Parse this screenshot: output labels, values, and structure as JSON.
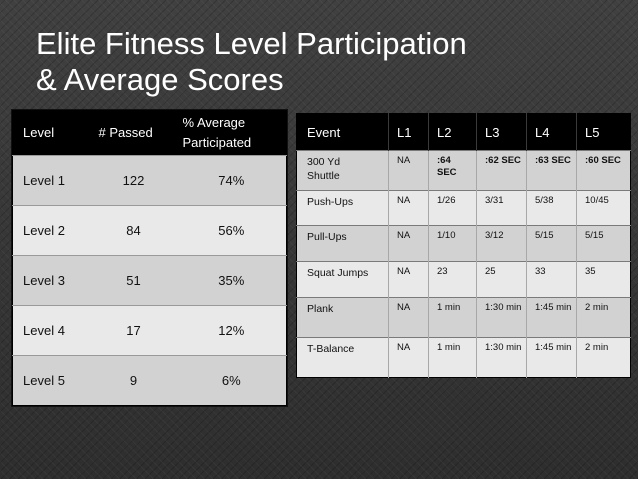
{
  "slide": {
    "title_line1": "Elite Fitness Level Participation",
    "title_line2": "& Average Scores"
  },
  "participation_table": {
    "headers": {
      "level": "Level",
      "passed": "# Passed",
      "pct_line1": "% Average",
      "pct_line2": "Participated"
    },
    "rows": [
      {
        "level": "Level 1",
        "passed": "122",
        "pct": "74%"
      },
      {
        "level": "Level 2",
        "passed": "84",
        "pct": "56%"
      },
      {
        "level": "Level 3",
        "passed": "51",
        "pct": "35%"
      },
      {
        "level": "Level 4",
        "passed": "17",
        "pct": "12%"
      },
      {
        "level": "Level 5",
        "passed": "9",
        "pct": "6%"
      }
    ]
  },
  "scores_table": {
    "headers": [
      "Event",
      "L1",
      "L2",
      "L3",
      "L4",
      "L5"
    ],
    "rows": [
      {
        "event_line1": "300 Yd",
        "event_line2": "Shuttle",
        "l1": "NA",
        "l2": ":64 SEC",
        "l3": ":62 SEC",
        "l4": ":63 SEC",
        "l5": ":60 SEC"
      },
      {
        "event_line1": "Push-Ups",
        "l1": "NA",
        "l2": "1/26",
        "l3": "3/31",
        "l4": "5/38",
        "l5": "10/45"
      },
      {
        "event_line1": "Pull-Ups",
        "l1": "NA",
        "l2": "1/10",
        "l3": "3/12",
        "l4": "5/15",
        "l5": "5/15"
      },
      {
        "event_line1": "Squat Jumps",
        "l1": "NA",
        "l2": "23",
        "l3": "25",
        "l4": "33",
        "l5": "35"
      },
      {
        "event_line1": "Plank",
        "l1": "NA",
        "l2": "1 min",
        "l3": "1:30 min",
        "l4": "1:45 min",
        "l5": "2 min"
      },
      {
        "event_line1": "T-Balance",
        "l1": "NA",
        "l2": "1 min",
        "l3": "1:30 min",
        "l4": "1:45 min",
        "l5": "2 min"
      }
    ]
  }
}
